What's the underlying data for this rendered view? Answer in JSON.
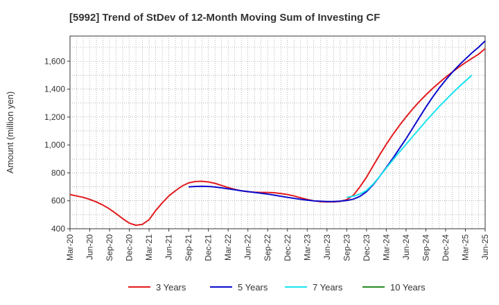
{
  "chart_data": {
    "type": "line",
    "title": "[5992]  Trend of StDev of 12-Month Moving Sum of Investing CF",
    "xlabel": "",
    "ylabel": "Amount (million yen)",
    "ylim": [
      400,
      1780
    ],
    "yticks": [
      400,
      600,
      800,
      1000,
      1200,
      1400,
      1600
    ],
    "ytick_labels": [
      "400",
      "600",
      "800",
      "1,000",
      "1,200",
      "1,400",
      "1,600"
    ],
    "x_start": "2020-03",
    "x_end": "2025-06",
    "xtick_labels": [
      "Mar-20",
      "Jun-20",
      "Sep-20",
      "Dec-20",
      "Mar-21",
      "Jun-21",
      "Sep-21",
      "Dec-21",
      "Mar-22",
      "Jun-22",
      "Sep-22",
      "Dec-22",
      "Mar-23",
      "Jun-23",
      "Sep-23",
      "Dec-23",
      "Mar-24",
      "Jun-24",
      "Sep-24",
      "Dec-24",
      "Mar-25",
      "Jun-25"
    ],
    "grid": true,
    "legend_position": "bottom",
    "series": [
      {
        "name": "3 Years",
        "color": "#e31a1c",
        "points": [
          [
            "2020-03",
            645
          ],
          [
            "2020-04",
            635
          ],
          [
            "2020-05",
            625
          ],
          [
            "2020-06",
            610
          ],
          [
            "2020-07",
            592
          ],
          [
            "2020-08",
            570
          ],
          [
            "2020-09",
            542
          ],
          [
            "2020-10",
            508
          ],
          [
            "2020-11",
            472
          ],
          [
            "2020-12",
            440
          ],
          [
            "2021-01",
            425
          ],
          [
            "2021-02",
            432
          ],
          [
            "2021-03",
            465
          ],
          [
            "2021-04",
            530
          ],
          [
            "2021-05",
            585
          ],
          [
            "2021-06",
            635
          ],
          [
            "2021-07",
            672
          ],
          [
            "2021-08",
            706
          ],
          [
            "2021-09",
            728
          ],
          [
            "2021-10",
            738
          ],
          [
            "2021-11",
            740
          ],
          [
            "2021-12",
            735
          ],
          [
            "2022-01",
            725
          ],
          [
            "2022-02",
            710
          ],
          [
            "2022-03",
            695
          ],
          [
            "2022-04",
            682
          ],
          [
            "2022-05",
            672
          ],
          [
            "2022-06",
            665
          ],
          [
            "2022-07",
            662
          ],
          [
            "2022-08",
            660
          ],
          [
            "2022-09",
            660
          ],
          [
            "2022-10",
            658
          ],
          [
            "2022-11",
            652
          ],
          [
            "2022-12",
            645
          ],
          [
            "2023-01",
            635
          ],
          [
            "2023-02",
            622
          ],
          [
            "2023-03",
            610
          ],
          [
            "2023-04",
            600
          ],
          [
            "2023-05",
            594
          ],
          [
            "2023-06",
            592
          ],
          [
            "2023-07",
            592
          ],
          [
            "2023-08",
            596
          ],
          [
            "2023-09",
            608
          ],
          [
            "2023-10",
            640
          ],
          [
            "2023-11",
            700
          ],
          [
            "2023-12",
            770
          ],
          [
            "2024-01",
            850
          ],
          [
            "2024-02",
            930
          ],
          [
            "2024-03",
            1005
          ],
          [
            "2024-04",
            1075
          ],
          [
            "2024-05",
            1140
          ],
          [
            "2024-06",
            1200
          ],
          [
            "2024-07",
            1258
          ],
          [
            "2024-08",
            1310
          ],
          [
            "2024-09",
            1358
          ],
          [
            "2024-10",
            1403
          ],
          [
            "2024-11",
            1445
          ],
          [
            "2024-12",
            1485
          ],
          [
            "2025-01",
            1522
          ],
          [
            "2025-02",
            1557
          ],
          [
            "2025-03",
            1590
          ],
          [
            "2025-04",
            1620
          ],
          [
            "2025-05",
            1650
          ],
          [
            "2025-06",
            1690
          ]
        ]
      },
      {
        "name": "5 Years",
        "color": "#0a0acd",
        "points": [
          [
            "2021-09",
            700
          ],
          [
            "2021-10",
            703
          ],
          [
            "2021-11",
            704
          ],
          [
            "2021-12",
            703
          ],
          [
            "2022-01",
            699
          ],
          [
            "2022-02",
            693
          ],
          [
            "2022-03",
            686
          ],
          [
            "2022-04",
            679
          ],
          [
            "2022-05",
            672
          ],
          [
            "2022-06",
            666
          ],
          [
            "2022-07",
            660
          ],
          [
            "2022-08",
            654
          ],
          [
            "2022-09",
            648
          ],
          [
            "2022-10",
            641
          ],
          [
            "2022-11",
            633
          ],
          [
            "2022-12",
            625
          ],
          [
            "2023-01",
            618
          ],
          [
            "2023-02",
            611
          ],
          [
            "2023-03",
            605
          ],
          [
            "2023-04",
            600
          ],
          [
            "2023-05",
            597
          ],
          [
            "2023-06",
            595
          ],
          [
            "2023-07",
            595
          ],
          [
            "2023-08",
            598
          ],
          [
            "2023-09",
            602
          ],
          [
            "2023-10",
            612
          ],
          [
            "2023-11",
            632
          ],
          [
            "2023-12",
            665
          ],
          [
            "2024-01",
            715
          ],
          [
            "2024-02",
            775
          ],
          [
            "2024-03",
            840
          ],
          [
            "2024-04",
            905
          ],
          [
            "2024-05",
            975
          ],
          [
            "2024-06",
            1045
          ],
          [
            "2024-07",
            1120
          ],
          [
            "2024-08",
            1195
          ],
          [
            "2024-09",
            1270
          ],
          [
            "2024-10",
            1340
          ],
          [
            "2024-11",
            1405
          ],
          [
            "2024-12",
            1465
          ],
          [
            "2025-01",
            1520
          ],
          [
            "2025-02",
            1570
          ],
          [
            "2025-03",
            1615
          ],
          [
            "2025-04",
            1660
          ],
          [
            "2025-05",
            1700
          ],
          [
            "2025-06",
            1745
          ]
        ]
      },
      {
        "name": "7 Years",
        "color": "#17e3ee",
        "points": [
          [
            "2023-09",
            625
          ],
          [
            "2023-10",
            633
          ],
          [
            "2023-11",
            648
          ],
          [
            "2023-12",
            675
          ],
          [
            "2024-01",
            720
          ],
          [
            "2024-02",
            775
          ],
          [
            "2024-03",
            835
          ],
          [
            "2024-04",
            893
          ],
          [
            "2024-05",
            950
          ],
          [
            "2024-06",
            1005
          ],
          [
            "2024-07",
            1060
          ],
          [
            "2024-08",
            1115
          ],
          [
            "2024-09",
            1170
          ],
          [
            "2024-10",
            1222
          ],
          [
            "2024-11",
            1273
          ],
          [
            "2024-12",
            1322
          ],
          [
            "2025-01",
            1370
          ],
          [
            "2025-02",
            1415
          ],
          [
            "2025-03",
            1458
          ],
          [
            "2025-04",
            1500
          ]
        ]
      },
      {
        "name": "10 Years",
        "color": "#228b22",
        "points": []
      }
    ]
  }
}
